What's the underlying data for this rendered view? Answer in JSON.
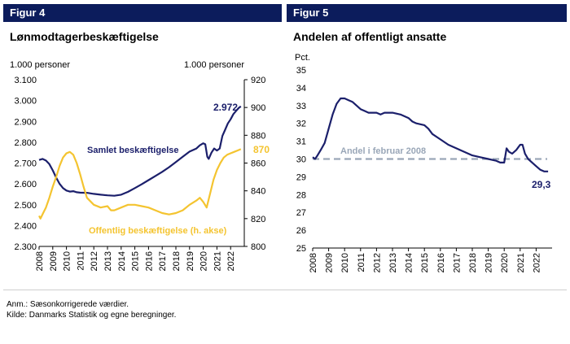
{
  "fig4": {
    "header": "Figur 4",
    "title": "Lønmodtagerbeskæftigelse",
    "left_unit": "1.000 personer",
    "right_unit": "1.000 personer",
    "end_label_total": "2.972",
    "end_label_public": "870",
    "series_label_total": "Samlet beskæftigelse",
    "series_label_public": "Offentlig beskæftigelse (h. akse)"
  },
  "fig5": {
    "header": "Figur 5",
    "title": "Andelen af offentligt ansatte",
    "unit": "Pct.",
    "reference_label": "Andel i februar 2008",
    "end_label": "29,3"
  },
  "footer": {
    "note": "Anm.: Sæsonkorrigerede værdier.",
    "source": "Kilde:  Danmarks Statistik og egne beregninger."
  },
  "colors": {
    "navy": "#1b1f6b",
    "gold": "#f4c430",
    "reference": "#9aa7b8",
    "header": "#0c1c5c"
  },
  "chart_data": [
    {
      "type": "line",
      "title": "Lønmodtagerbeskæftigelse",
      "x_ticks": [
        "2008",
        "2009",
        "2010",
        "2011",
        "2012",
        "2013",
        "2014",
        "2015",
        "2016",
        "2017",
        "2018",
        "2019",
        "2020",
        "2021",
        "2022"
      ],
      "ylim_left": [
        2300,
        3100
      ],
      "yticks_left": [
        "2.300",
        "2.400",
        "2.500",
        "2.600",
        "2.700",
        "2.800",
        "2.900",
        "3.000",
        "3.100"
      ],
      "ylim_right": [
        800,
        920
      ],
      "yticks_right": [
        "800",
        "820",
        "840",
        "860",
        "880",
        "900",
        "920"
      ],
      "grid": false,
      "series": [
        {
          "name": "Samlet beskæftigelse",
          "axis": "left",
          "color": "#1b1f6b",
          "points": [
            [
              2008.0,
              2715
            ],
            [
              2008.25,
              2720
            ],
            [
              2008.5,
              2712
            ],
            [
              2008.75,
              2695
            ],
            [
              2009.0,
              2665
            ],
            [
              2009.25,
              2630
            ],
            [
              2009.5,
              2600
            ],
            [
              2009.75,
              2580
            ],
            [
              2010.0,
              2568
            ],
            [
              2010.25,
              2563
            ],
            [
              2010.5,
              2565
            ],
            [
              2010.75,
              2560
            ],
            [
              2011.0,
              2558
            ],
            [
              2011.5,
              2557
            ],
            [
              2012.0,
              2552
            ],
            [
              2012.5,
              2548
            ],
            [
              2013.0,
              2545
            ],
            [
              2013.5,
              2543
            ],
            [
              2014.0,
              2548
            ],
            [
              2014.5,
              2562
            ],
            [
              2015.0,
              2580
            ],
            [
              2015.5,
              2598
            ],
            [
              2016.0,
              2618
            ],
            [
              2016.5,
              2638
            ],
            [
              2017.0,
              2658
            ],
            [
              2017.5,
              2680
            ],
            [
              2018.0,
              2705
            ],
            [
              2018.5,
              2730
            ],
            [
              2019.0,
              2755
            ],
            [
              2019.5,
              2770
            ],
            [
              2019.75,
              2785
            ],
            [
              2020.0,
              2795
            ],
            [
              2020.15,
              2790
            ],
            [
              2020.3,
              2730
            ],
            [
              2020.4,
              2720
            ],
            [
              2020.6,
              2750
            ],
            [
              2020.8,
              2770
            ],
            [
              2021.0,
              2760
            ],
            [
              2021.2,
              2770
            ],
            [
              2021.4,
              2830
            ],
            [
              2021.6,
              2860
            ],
            [
              2021.8,
              2890
            ],
            [
              2022.0,
              2910
            ],
            [
              2022.2,
              2935
            ],
            [
              2022.4,
              2950
            ],
            [
              2022.6,
              2965
            ],
            [
              2022.75,
              2972
            ]
          ]
        },
        {
          "name": "Offentlig beskæftigelse (h. akse)",
          "axis": "right",
          "color": "#f4c430",
          "points": [
            [
              2008.0,
              822
            ],
            [
              2008.1,
              820
            ],
            [
              2008.3,
              824
            ],
            [
              2008.5,
              828
            ],
            [
              2008.75,
              835
            ],
            [
              2009.0,
              843
            ],
            [
              2009.25,
              850
            ],
            [
              2009.5,
              858
            ],
            [
              2009.75,
              864
            ],
            [
              2010.0,
              867
            ],
            [
              2010.25,
              868
            ],
            [
              2010.5,
              866
            ],
            [
              2010.75,
              860
            ],
            [
              2011.0,
              852
            ],
            [
              2011.25,
              843
            ],
            [
              2011.5,
              835
            ],
            [
              2012.0,
              830
            ],
            [
              2012.5,
              828
            ],
            [
              2013.0,
              829
            ],
            [
              2013.25,
              826
            ],
            [
              2013.5,
              826
            ],
            [
              2014.0,
              828
            ],
            [
              2014.5,
              830
            ],
            [
              2015.0,
              830
            ],
            [
              2015.5,
              829
            ],
            [
              2016.0,
              828
            ],
            [
              2016.5,
              826
            ],
            [
              2017.0,
              824
            ],
            [
              2017.5,
              823
            ],
            [
              2018.0,
              824
            ],
            [
              2018.5,
              826
            ],
            [
              2019.0,
              830
            ],
            [
              2019.5,
              833
            ],
            [
              2019.75,
              835
            ],
            [
              2020.0,
              832
            ],
            [
              2020.25,
              828
            ],
            [
              2020.5,
              838
            ],
            [
              2020.75,
              848
            ],
            [
              2021.0,
              855
            ],
            [
              2021.25,
              860
            ],
            [
              2021.5,
              864
            ],
            [
              2021.75,
              866
            ],
            [
              2022.0,
              867
            ],
            [
              2022.25,
              868
            ],
            [
              2022.5,
              869
            ],
            [
              2022.75,
              870
            ]
          ]
        }
      ]
    },
    {
      "type": "line",
      "title": "Andelen af offentligt ansatte",
      "ylabel": "Pct.",
      "x_ticks": [
        "2008",
        "2009",
        "2010",
        "2011",
        "2012",
        "2013",
        "2014",
        "2015",
        "2016",
        "2017",
        "2018",
        "2019",
        "2020",
        "2021",
        "2022"
      ],
      "ylim": [
        25,
        35
      ],
      "yticks": [
        "25",
        "26",
        "27",
        "28",
        "29",
        "30",
        "31",
        "32",
        "33",
        "34",
        "35"
      ],
      "grid": false,
      "reference_line": {
        "label": "Andel i februar 2008",
        "value": 30.0,
        "color": "#9aa7b8",
        "style": "dashed"
      },
      "series": [
        {
          "name": "Andel",
          "color": "#1b1f6b",
          "points": [
            [
              2008.0,
              30.1
            ],
            [
              2008.15,
              30.0
            ],
            [
              2008.3,
              30.2
            ],
            [
              2008.5,
              30.5
            ],
            [
              2008.75,
              30.9
            ],
            [
              2009.0,
              31.7
            ],
            [
              2009.25,
              32.5
            ],
            [
              2009.5,
              33.1
            ],
            [
              2009.75,
              33.4
            ],
            [
              2010.0,
              33.4
            ],
            [
              2010.25,
              33.3
            ],
            [
              2010.5,
              33.2
            ],
            [
              2010.75,
              33.0
            ],
            [
              2011.0,
              32.8
            ],
            [
              2011.25,
              32.7
            ],
            [
              2011.5,
              32.6
            ],
            [
              2012.0,
              32.6
            ],
            [
              2012.25,
              32.5
            ],
            [
              2012.5,
              32.6
            ],
            [
              2013.0,
              32.6
            ],
            [
              2013.5,
              32.5
            ],
            [
              2014.0,
              32.3
            ],
            [
              2014.25,
              32.1
            ],
            [
              2014.5,
              32.0
            ],
            [
              2015.0,
              31.9
            ],
            [
              2015.25,
              31.7
            ],
            [
              2015.5,
              31.4
            ],
            [
              2016.0,
              31.1
            ],
            [
              2016.5,
              30.8
            ],
            [
              2017.0,
              30.6
            ],
            [
              2017.5,
              30.4
            ],
            [
              2018.0,
              30.2
            ],
            [
              2018.5,
              30.1
            ],
            [
              2019.0,
              30.0
            ],
            [
              2019.5,
              29.9
            ],
            [
              2019.75,
              29.8
            ],
            [
              2020.0,
              29.8
            ],
            [
              2020.15,
              30.6
            ],
            [
              2020.3,
              30.4
            ],
            [
              2020.5,
              30.3
            ],
            [
              2020.75,
              30.5
            ],
            [
              2021.0,
              30.8
            ],
            [
              2021.15,
              30.8
            ],
            [
              2021.3,
              30.3
            ],
            [
              2021.5,
              30.0
            ],
            [
              2021.75,
              29.8
            ],
            [
              2022.0,
              29.6
            ],
            [
              2022.25,
              29.4
            ],
            [
              2022.5,
              29.3
            ],
            [
              2022.75,
              29.3
            ]
          ]
        }
      ]
    }
  ]
}
